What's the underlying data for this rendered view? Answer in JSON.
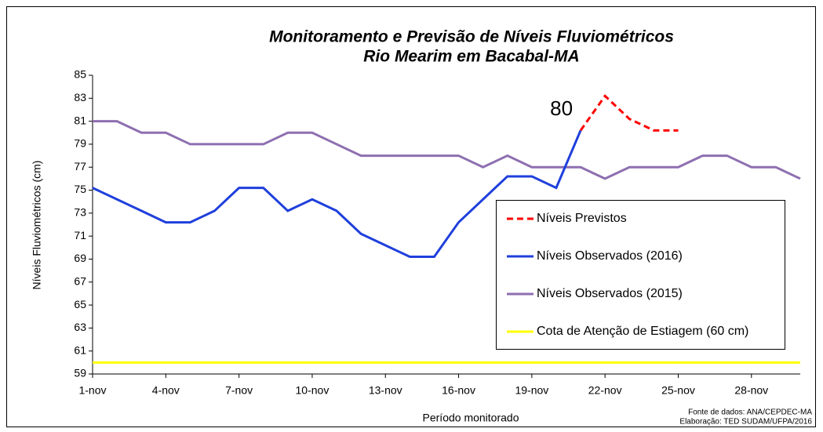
{
  "chart_data": {
    "type": "line",
    "title": "Monitoramento e Previsão de Níveis Fluviométricos",
    "subtitle": "Rio Mearim em Bacabal-MA",
    "y_label": "Níveis Fluviométricos (cm)",
    "x_label": "Período monitorado",
    "source": "Fonte de dados: ANA/CEPDEC-MA",
    "credit": "Elaboração: TED SUDAM/UFPA/2016",
    "categories": [
      "1-nov",
      null,
      null,
      "4-nov",
      null,
      null,
      "7-nov",
      null,
      null,
      "10-nov",
      null,
      null,
      "13-nov",
      null,
      null,
      "16-nov",
      null,
      null,
      "19-nov",
      null,
      null,
      "22-nov",
      null,
      null,
      "25-nov",
      null,
      null,
      "28-nov",
      null,
      null
    ],
    "ylim": [
      59,
      85
    ],
    "yticks": [
      59,
      61,
      63,
      65,
      67,
      69,
      71,
      73,
      75,
      77,
      79,
      81,
      83,
      85
    ],
    "grid": false,
    "legend": "lower right",
    "series": [
      {
        "name": "Níveis Previstos",
        "color": "#ff0000",
        "dashed": true,
        "values": [
          null,
          null,
          null,
          null,
          null,
          null,
          null,
          null,
          null,
          null,
          null,
          null,
          null,
          null,
          null,
          null,
          null,
          null,
          null,
          null,
          80.2,
          83.2,
          81.2,
          80.2,
          80.2,
          null,
          null,
          null,
          null,
          null
        ]
      },
      {
        "name": "Níveis Observados (2016)",
        "color": "#1f3fdc",
        "values": [
          75.2,
          74.2,
          73.2,
          72.2,
          72.2,
          73.2,
          75.2,
          75.2,
          73.2,
          74.2,
          73.2,
          71.2,
          70.2,
          69.2,
          69.2,
          72.2,
          74.2,
          76.2,
          76.2,
          75.2,
          80.2,
          null,
          null,
          null,
          null,
          null,
          null,
          null,
          null,
          null
        ],
        "value_labels": [
          null,
          null,
          null,
          null,
          null,
          null,
          null,
          null,
          null,
          null,
          null,
          null,
          null,
          null,
          null,
          null,
          null,
          null,
          null,
          null,
          "80",
          null,
          null,
          null,
          null,
          null,
          null,
          null,
          null,
          null
        ]
      },
      {
        "name": "Níveis Observados (2015)",
        "color": "#8e6fb0",
        "values": [
          81,
          81,
          80,
          80,
          79,
          79,
          79,
          79,
          80,
          80,
          79,
          78,
          78,
          78,
          78,
          78,
          77,
          78,
          77,
          77,
          77,
          76,
          77,
          77,
          77,
          78,
          78,
          77,
          77,
          76
        ]
      },
      {
        "name": "Cota de Atenção de Estiagem (60 cm)",
        "color": "#ffff00",
        "values": [
          60,
          60,
          60,
          60,
          60,
          60,
          60,
          60,
          60,
          60,
          60,
          60,
          60,
          60,
          60,
          60,
          60,
          60,
          60,
          60,
          60,
          60,
          60,
          60,
          60,
          60,
          60,
          60,
          60,
          60
        ]
      }
    ]
  }
}
